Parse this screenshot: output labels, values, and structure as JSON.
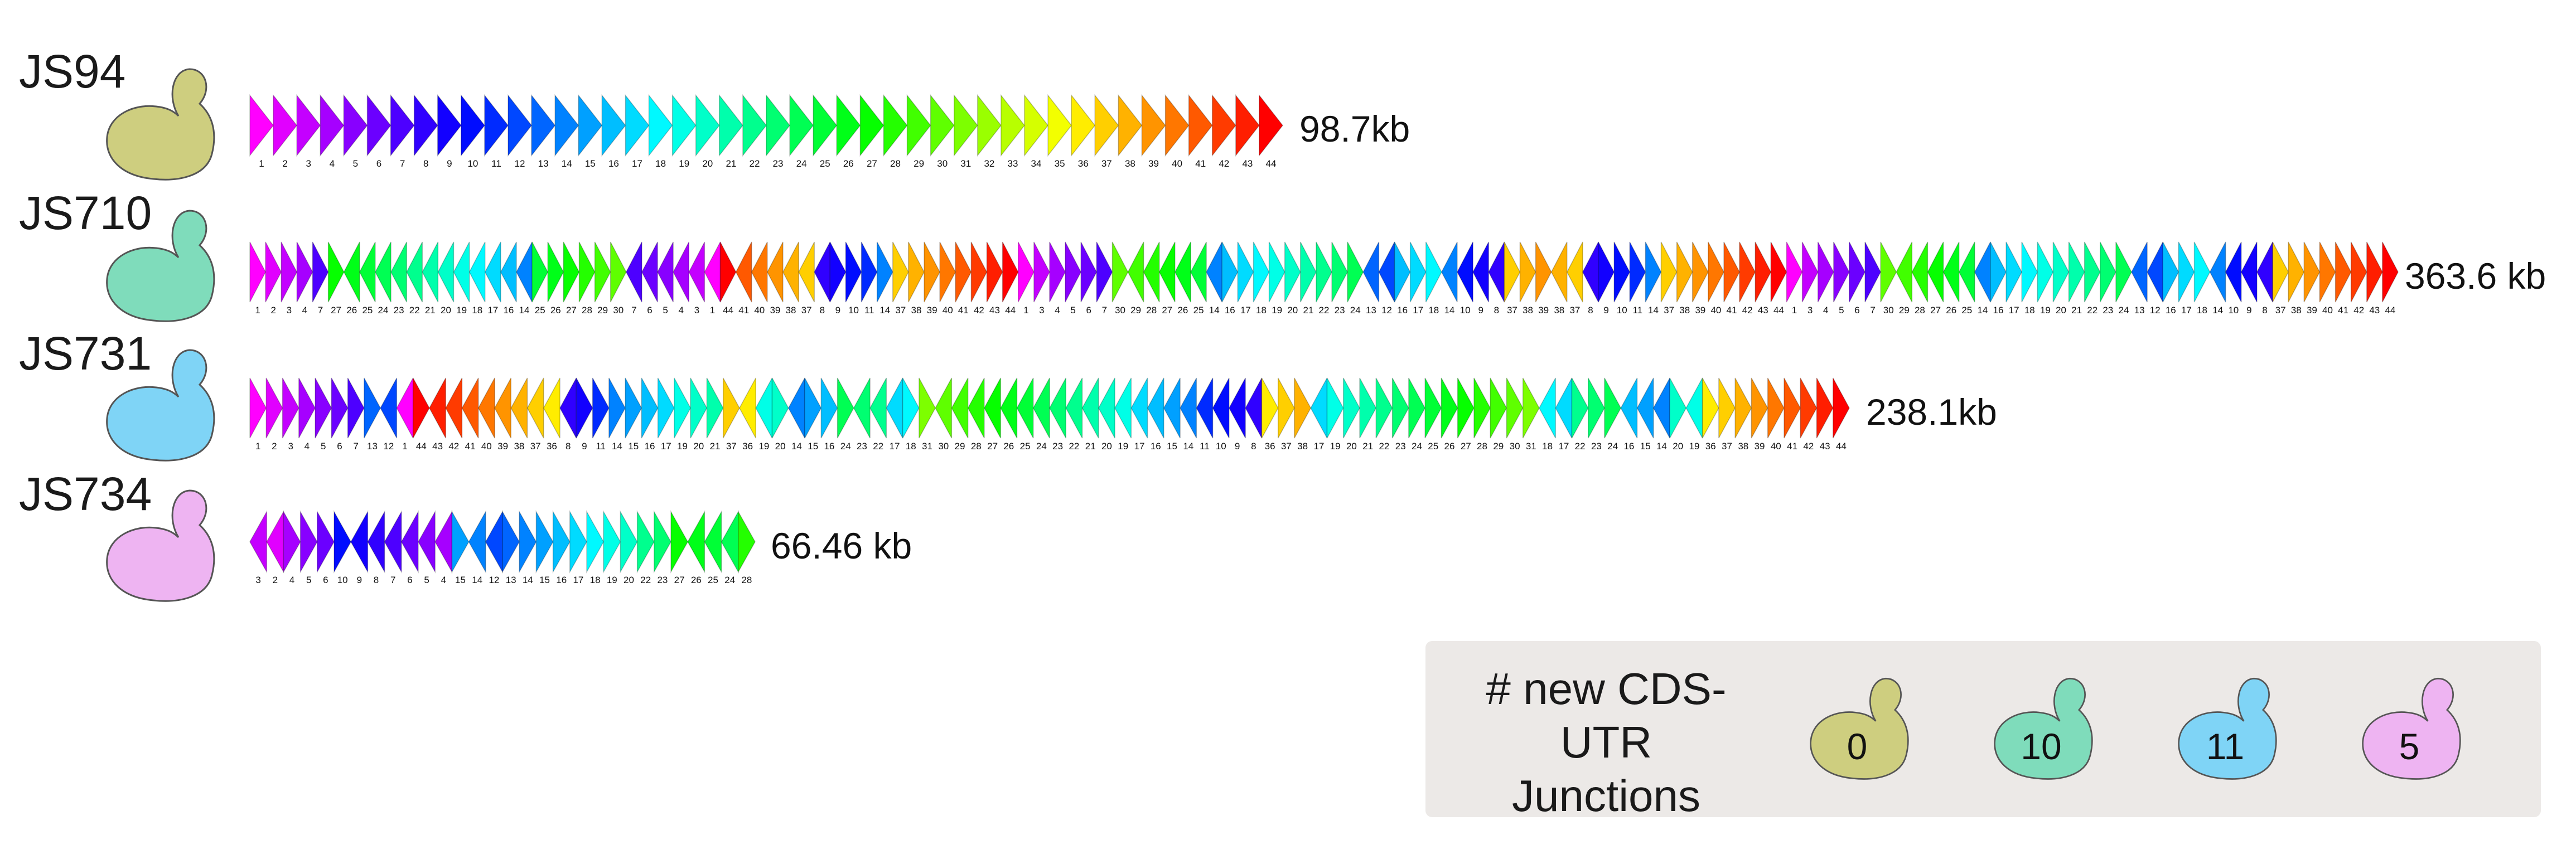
{
  "strains": [
    {
      "id": "JS94",
      "label": "JS94",
      "size_label": "98.7kb",
      "cell_color": "#cece7f",
      "genes": [
        1,
        2,
        3,
        4,
        5,
        6,
        7,
        8,
        9,
        10,
        11,
        12,
        13,
        14,
        15,
        16,
        17,
        18,
        19,
        20,
        21,
        22,
        23,
        24,
        25,
        26,
        27,
        28,
        29,
        30,
        31,
        32,
        33,
        34,
        35,
        36,
        37,
        38,
        39,
        40,
        41,
        42,
        43,
        44
      ]
    },
    {
      "id": "JS710",
      "label": "JS710",
      "size_label": "363.6 kb",
      "cell_color": "#7fdcbb",
      "genes": [
        1,
        2,
        3,
        4,
        7,
        27,
        26,
        25,
        24,
        23,
        22,
        21,
        20,
        19,
        18,
        17,
        16,
        14,
        25,
        26,
        27,
        28,
        29,
        30,
        7,
        6,
        5,
        4,
        3,
        1,
        44,
        41,
        40,
        39,
        38,
        37,
        8,
        9,
        10,
        11,
        14,
        37,
        38,
        39,
        40,
        41,
        42,
        43,
        44,
        1,
        3,
        4,
        5,
        6,
        7,
        30,
        29,
        28,
        27,
        26,
        25,
        14,
        16,
        17,
        18,
        19,
        20,
        21,
        22,
        23,
        24,
        13,
        12,
        16,
        17,
        18,
        14,
        10,
        9,
        8,
        37,
        38,
        39,
        38,
        37,
        8,
        9,
        10,
        11,
        14,
        37,
        38,
        39,
        40,
        41,
        42,
        43,
        44,
        1,
        3,
        4,
        5,
        6,
        7,
        30,
        29,
        28,
        27,
        26,
        25,
        14,
        16,
        17,
        18,
        19,
        20,
        21,
        22,
        23,
        24,
        13,
        12,
        16,
        17,
        18,
        14,
        10,
        9,
        8,
        37,
        38,
        39,
        40,
        41,
        42,
        43,
        44
      ]
    },
    {
      "id": "JS731",
      "label": "JS731",
      "size_label": "238.1kb",
      "cell_color": "#7fd4f6",
      "genes": [
        1,
        2,
        3,
        4,
        5,
        6,
        7,
        13,
        12,
        1,
        44,
        43,
        42,
        41,
        40,
        39,
        38,
        37,
        36,
        8,
        9,
        11,
        14,
        15,
        16,
        17,
        19,
        20,
        21,
        37,
        36,
        19,
        20,
        14,
        15,
        16,
        24,
        23,
        22,
        17,
        18,
        31,
        30,
        29,
        28,
        27,
        26,
        25,
        24,
        23,
        22,
        21,
        20,
        19,
        17,
        16,
        15,
        14,
        11,
        10,
        9,
        8,
        36,
        37,
        38,
        17,
        19,
        20,
        21,
        22,
        23,
        24,
        25,
        26,
        27,
        28,
        29,
        30,
        31,
        18,
        17,
        22,
        23,
        24,
        16,
        15,
        14,
        20,
        19,
        36,
        37,
        38,
        39,
        40,
        41,
        42,
        43,
        44
      ]
    },
    {
      "id": "JS734",
      "label": "JS734",
      "size_label": "66.46 kb",
      "cell_color": "#eeb4f2",
      "genes": [
        3,
        2,
        4,
        5,
        6,
        10,
        9,
        8,
        7,
        6,
        5,
        4,
        15,
        14,
        12,
        13,
        14,
        15,
        16,
        17,
        18,
        19,
        20,
        22,
        23,
        27,
        26,
        25,
        24,
        28
      ]
    }
  ],
  "legend": {
    "title_line1": "# new CDS-UTR",
    "title_line2": "Junctions",
    "items": [
      {
        "strain": "JS94",
        "value": "0",
        "color": "#cece7f"
      },
      {
        "strain": "JS710",
        "value": "10",
        "color": "#7fdcbb"
      },
      {
        "strain": "JS731",
        "value": "11",
        "color": "#7fd4f6"
      },
      {
        "strain": "JS734",
        "value": "5",
        "color": "#eeb4f2"
      }
    ]
  }
}
